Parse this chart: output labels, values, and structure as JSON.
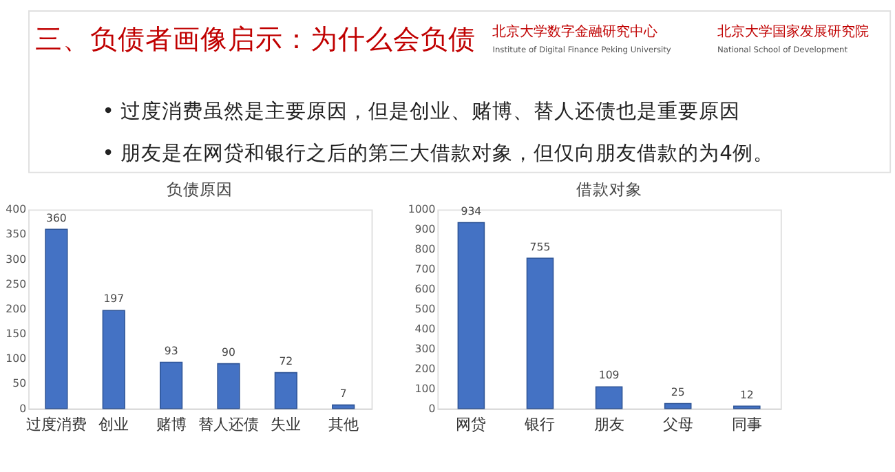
{
  "chart_data": [
    {
      "type": "bar",
      "title": "负债原因",
      "categories": [
        "过度消费",
        "创业",
        "赌博",
        "替人还债",
        "失业",
        "其他"
      ],
      "values": [
        360,
        197,
        93,
        90,
        72,
        7
      ],
      "color": "#4472c4",
      "ylim": [
        0,
        400
      ],
      "yticks": [
        0,
        50,
        100,
        150,
        200,
        250,
        300,
        350,
        400
      ],
      "grid": false,
      "data_labels": true,
      "annotations": [
        "三、负债者画像启示：为什么会负债",
        "北京大学数字金融研究中心",
        "Institute of Digital Finance Peking University",
        "北京大学国家发展研究院",
        "National School of Development",
        "• 过度消费虽然是主要原因，但是创业、赌博、替人还债也是重要原因",
        "• 朋友是在网贷和银行之后的第三大借款对象，但仅向朋友借款的为4例。"
      ]
    },
    {
      "type": "bar",
      "title": "借款对象",
      "categories": [
        "网贷",
        "银行",
        "朋友",
        "父母",
        "同事"
      ],
      "values": [
        934,
        755,
        109,
        25,
        12
      ],
      "color": "#4472c4",
      "ylim": [
        0,
        1000
      ],
      "yticks": [
        0,
        100,
        200,
        300,
        400,
        500,
        600,
        700,
        800,
        900,
        1000
      ],
      "grid": false,
      "data_labels": true
    }
  ]
}
